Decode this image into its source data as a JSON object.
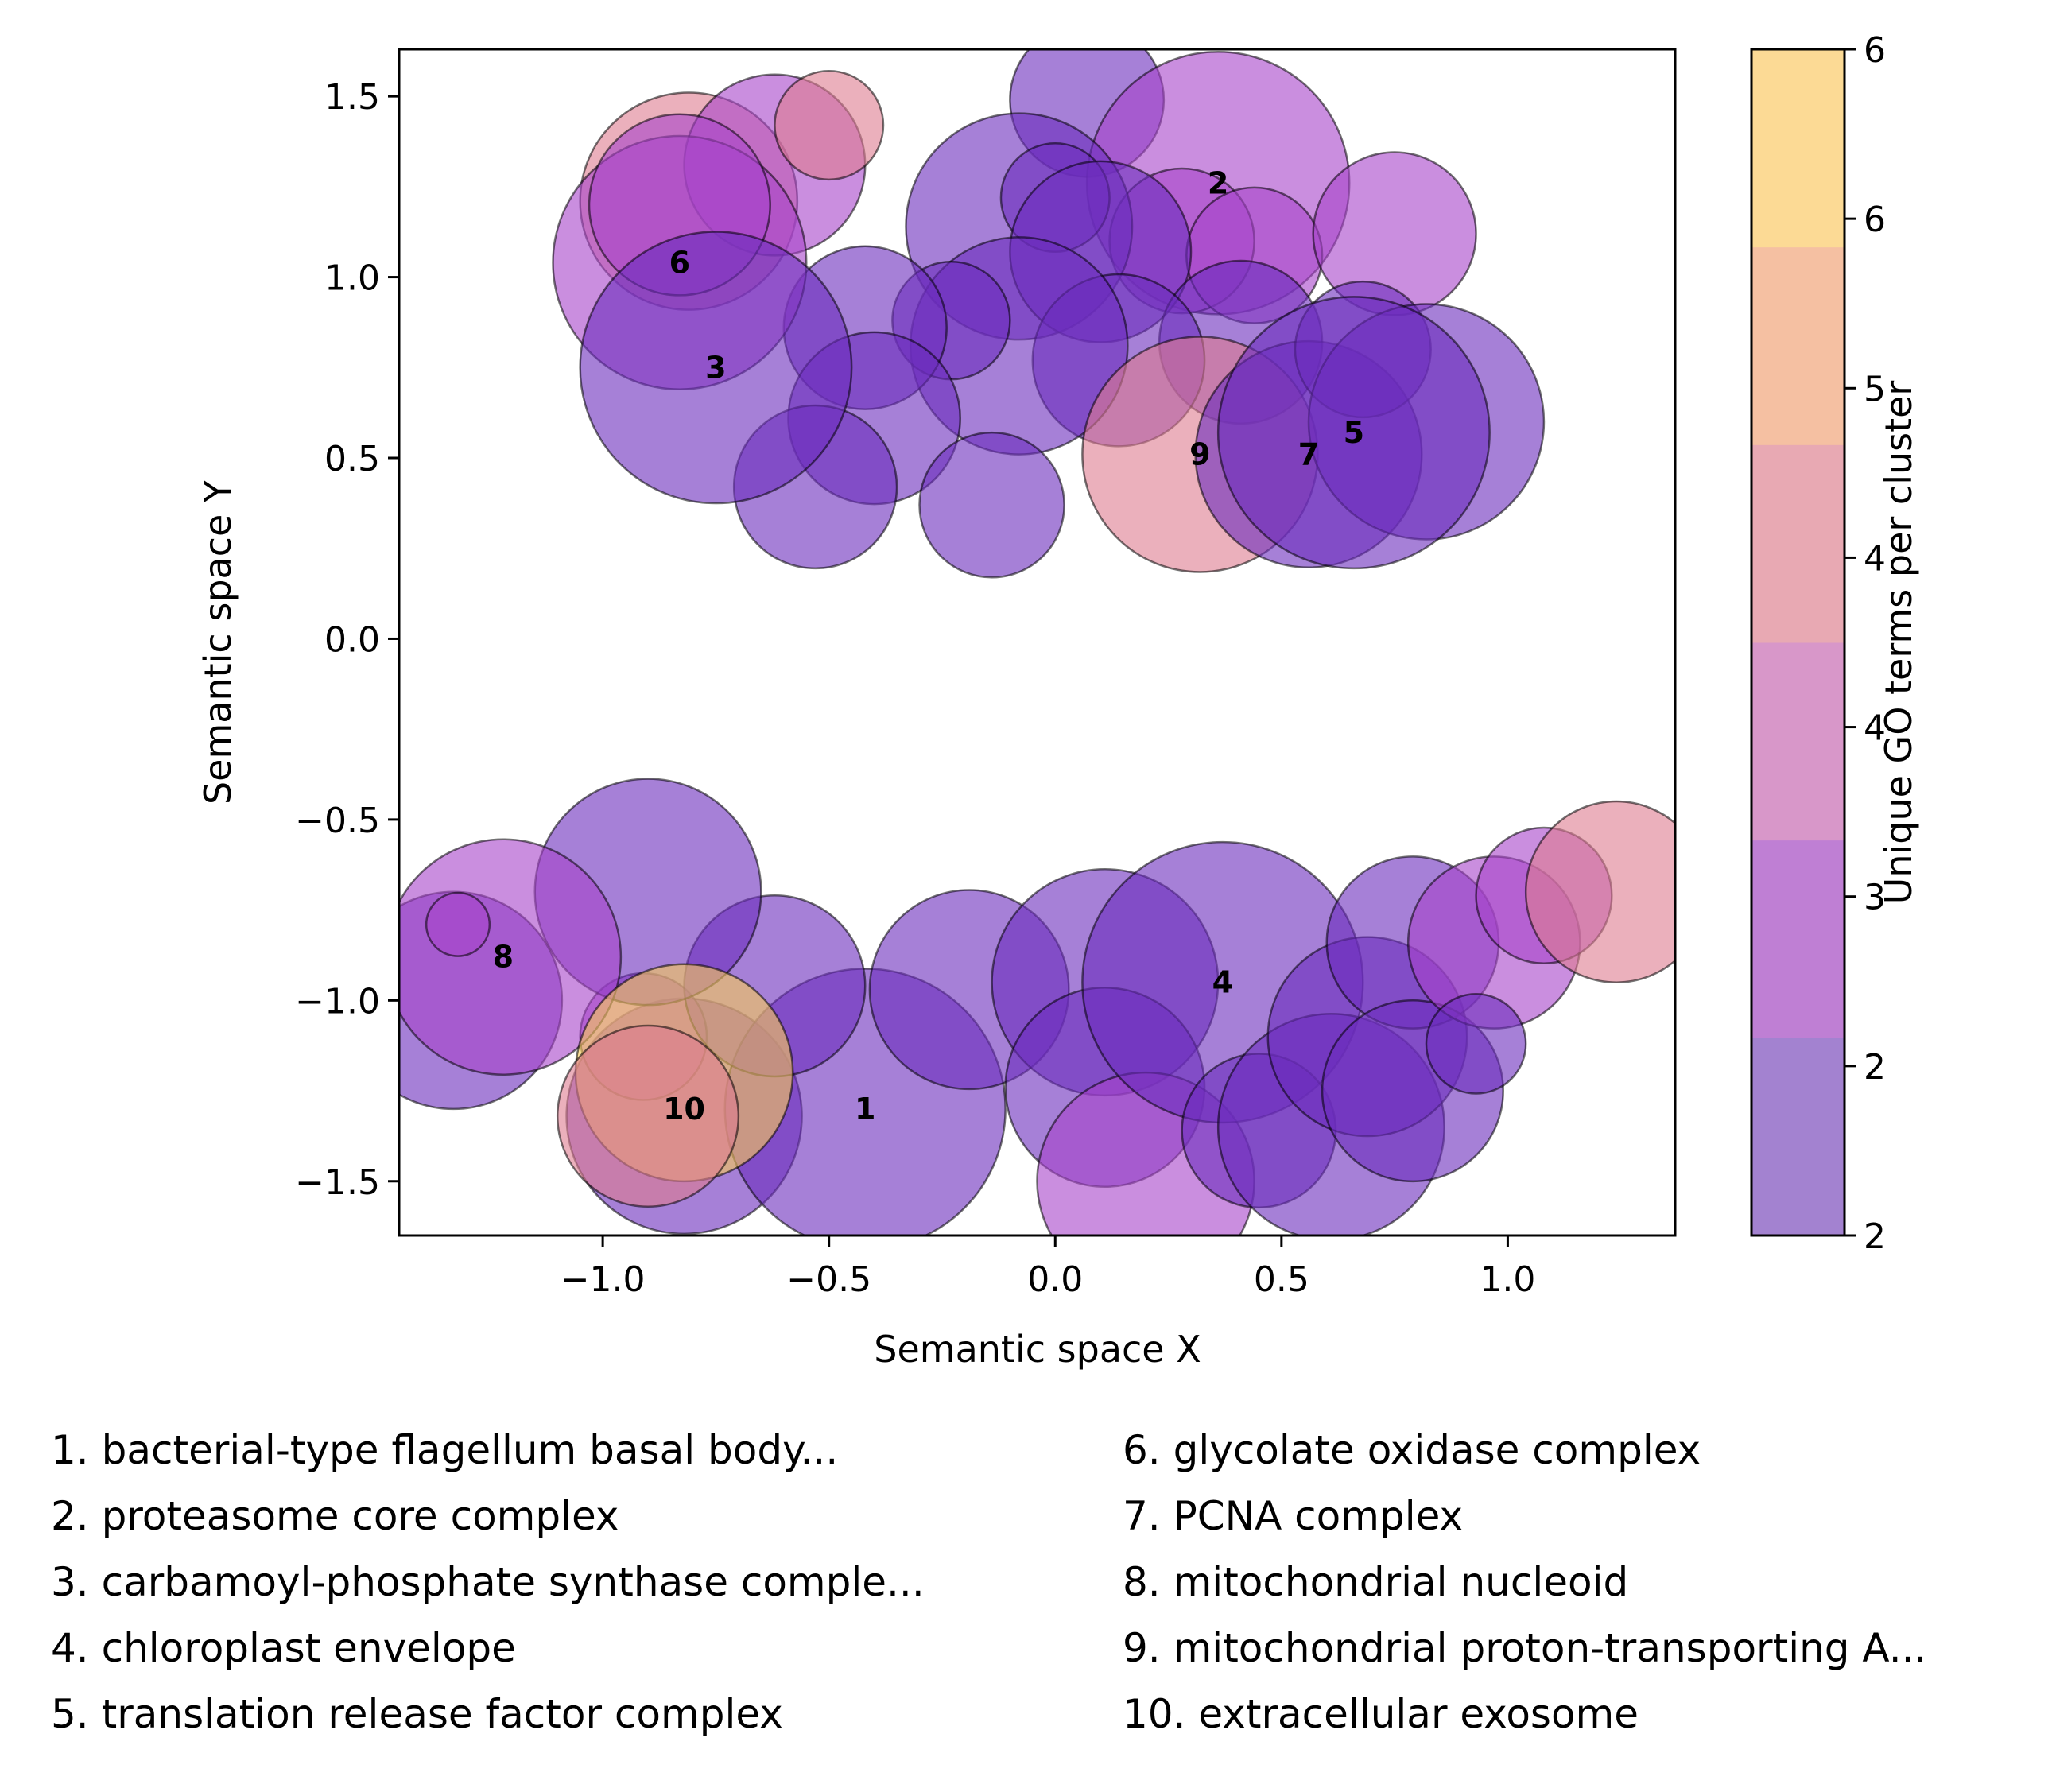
{
  "chart_data": {
    "type": "scatter",
    "subtype": "bubble",
    "xlabel": "Semantic space X",
    "ylabel": "Semantic space Y",
    "xlim": [
      -1.45,
      1.37
    ],
    "ylim": [
      -1.65,
      1.63
    ],
    "xticks": [
      {
        "value": -1.0,
        "label": "−1.0"
      },
      {
        "value": -0.5,
        "label": "−0.5"
      },
      {
        "value": 0.0,
        "label": "0.0"
      },
      {
        "value": 0.5,
        "label": "0.5"
      },
      {
        "value": 1.0,
        "label": "1.0"
      }
    ],
    "yticks": [
      {
        "value": 1.5,
        "label": "1.5"
      },
      {
        "value": 1.0,
        "label": "1.0"
      },
      {
        "value": 0.5,
        "label": "0.5"
      },
      {
        "value": 0.0,
        "label": "0.0"
      },
      {
        "value": -0.5,
        "label": "−0.5"
      },
      {
        "value": -1.0,
        "label": "−1.0"
      },
      {
        "value": -1.5,
        "label": "−1.5"
      }
    ],
    "grid": false,
    "colorbar": {
      "label": "Unique GO terms per cluster",
      "colors": [
        "#a382d0",
        "#bf7fd4",
        "#d897c9",
        "#e8a9b3",
        "#f5c0a2",
        "#fcda95"
      ],
      "tick_labels": [
        "2",
        "2",
        "3",
        "4",
        "4",
        "5",
        "6",
        "6"
      ]
    },
    "color_by_terms": {
      "2": "#6a2cbc",
      "3": "#a742c9",
      "4": "#de7c8f",
      "6": "#f9cc57"
    },
    "bubbles": [
      {
        "x": -0.82,
        "y": -1.32,
        "r": 0.26,
        "terms": 2
      },
      {
        "x": -0.42,
        "y": -1.3,
        "r": 0.31,
        "terms": 2
      },
      {
        "x": -0.91,
        "y": -1.1,
        "r": 0.14,
        "terms": 3
      },
      {
        "x": -1.33,
        "y": -1.0,
        "r": 0.24,
        "terms": 2
      },
      {
        "x": -0.62,
        "y": -0.96,
        "r": 0.2,
        "terms": 2
      },
      {
        "x": -0.9,
        "y": -0.7,
        "r": 0.25,
        "terms": 2
      },
      {
        "x": -1.22,
        "y": -0.88,
        "r": 0.26,
        "terms": 3
      },
      {
        "x": -1.32,
        "y": -0.79,
        "r": 0.07,
        "terms": 3
      },
      {
        "x": -0.82,
        "y": -1.2,
        "r": 0.24,
        "terms": 6
      },
      {
        "x": -0.9,
        "y": -1.32,
        "r": 0.2,
        "terms": 4
      },
      {
        "x": -0.19,
        "y": -0.97,
        "r": 0.22,
        "terms": 2
      },
      {
        "x": 0.11,
        "y": -0.95,
        "r": 0.25,
        "terms": 2
      },
      {
        "x": 0.11,
        "y": -1.24,
        "r": 0.22,
        "terms": 2
      },
      {
        "x": 0.2,
        "y": -1.5,
        "r": 0.24,
        "terms": 3
      },
      {
        "x": 0.37,
        "y": -0.95,
        "r": 0.31,
        "terms": 2
      },
      {
        "x": 0.45,
        "y": -1.36,
        "r": 0.17,
        "terms": 2
      },
      {
        "x": 0.61,
        "y": -1.35,
        "r": 0.25,
        "terms": 2
      },
      {
        "x": 0.69,
        "y": -1.1,
        "r": 0.22,
        "terms": 2
      },
      {
        "x": 0.79,
        "y": -0.84,
        "r": 0.19,
        "terms": 2
      },
      {
        "x": 0.79,
        "y": -1.25,
        "r": 0.2,
        "terms": 2
      },
      {
        "x": 0.97,
        "y": -0.84,
        "r": 0.19,
        "terms": 3
      },
      {
        "x": 0.93,
        "y": -1.12,
        "r": 0.11,
        "terms": 2
      },
      {
        "x": 1.08,
        "y": -0.71,
        "r": 0.15,
        "terms": 3
      },
      {
        "x": 1.24,
        "y": -0.7,
        "r": 0.2,
        "terms": 4
      },
      {
        "x": 0.07,
        "y": 1.49,
        "r": 0.17,
        "terms": 2
      },
      {
        "x": 0.36,
        "y": 1.26,
        "r": 0.29,
        "terms": 3
      },
      {
        "x": 0.28,
        "y": 1.1,
        "r": 0.16,
        "terms": 3
      },
      {
        "x": 0.44,
        "y": 1.06,
        "r": 0.15,
        "terms": 3
      },
      {
        "x": 0.75,
        "y": 1.12,
        "r": 0.18,
        "terms": 3
      },
      {
        "x": -0.08,
        "y": 1.14,
        "r": 0.25,
        "terms": 2
      },
      {
        "x": 0.0,
        "y": 1.22,
        "r": 0.12,
        "terms": 2
      },
      {
        "x": 0.1,
        "y": 1.07,
        "r": 0.2,
        "terms": 2
      },
      {
        "x": 0.41,
        "y": 0.82,
        "r": 0.18,
        "terms": 2
      },
      {
        "x": 0.14,
        "y": 0.77,
        "r": 0.19,
        "terms": 2
      },
      {
        "x": -0.08,
        "y": 0.81,
        "r": 0.24,
        "terms": 2
      },
      {
        "x": -0.23,
        "y": 0.88,
        "r": 0.13,
        "terms": 2
      },
      {
        "x": -0.42,
        "y": 0.86,
        "r": 0.18,
        "terms": 2
      },
      {
        "x": -0.4,
        "y": 0.61,
        "r": 0.19,
        "terms": 2
      },
      {
        "x": -0.53,
        "y": 0.42,
        "r": 0.18,
        "terms": 2
      },
      {
        "x": -0.14,
        "y": 0.37,
        "r": 0.16,
        "terms": 2
      },
      {
        "x": 0.32,
        "y": 0.51,
        "r": 0.26,
        "terms": 4
      },
      {
        "x": 0.56,
        "y": 0.51,
        "r": 0.25,
        "terms": 2
      },
      {
        "x": 0.68,
        "y": 0.8,
        "r": 0.15,
        "terms": 2
      },
      {
        "x": 0.82,
        "y": 0.6,
        "r": 0.26,
        "terms": 2
      },
      {
        "x": 0.66,
        "y": 0.57,
        "r": 0.3,
        "terms": 2
      },
      {
        "x": -0.81,
        "y": 1.21,
        "r": 0.24,
        "terms": 4
      },
      {
        "x": -0.62,
        "y": 1.31,
        "r": 0.2,
        "terms": 3
      },
      {
        "x": -0.5,
        "y": 1.42,
        "r": 0.12,
        "terms": 4
      },
      {
        "x": -0.83,
        "y": 1.04,
        "r": 0.28,
        "terms": 3
      },
      {
        "x": -0.83,
        "y": 1.2,
        "r": 0.2,
        "terms": 3
      },
      {
        "x": -0.75,
        "y": 0.75,
        "r": 0.3,
        "terms": 2
      }
    ],
    "cluster_labels": [
      {
        "text": "1",
        "x": -0.42,
        "y": -1.3
      },
      {
        "text": "2",
        "x": 0.36,
        "y": 1.26
      },
      {
        "text": "3",
        "x": -0.75,
        "y": 0.75
      },
      {
        "text": "4",
        "x": 0.37,
        "y": -0.95
      },
      {
        "text": "5",
        "x": 0.66,
        "y": 0.57
      },
      {
        "text": "6",
        "x": -0.83,
        "y": 1.04
      },
      {
        "text": "7",
        "x": 0.56,
        "y": 0.51
      },
      {
        "text": "8",
        "x": -1.22,
        "y": -0.88
      },
      {
        "text": "9",
        "x": 0.32,
        "y": 0.51
      },
      {
        "text": "10",
        "x": -0.82,
        "y": -1.3
      }
    ]
  },
  "legend": {
    "items": [
      "1. bacterial-type flagellum basal body...",
      "2. proteasome core complex",
      "3. carbamoyl-phosphate synthase comple...",
      "4. chloroplast envelope",
      "5. translation release factor complex",
      "6. glycolate oxidase complex",
      "7. PCNA complex",
      "8. mitochondrial nucleoid",
      "9. mitochondrial proton-transporting A...",
      "10. extracellular exosome"
    ]
  }
}
